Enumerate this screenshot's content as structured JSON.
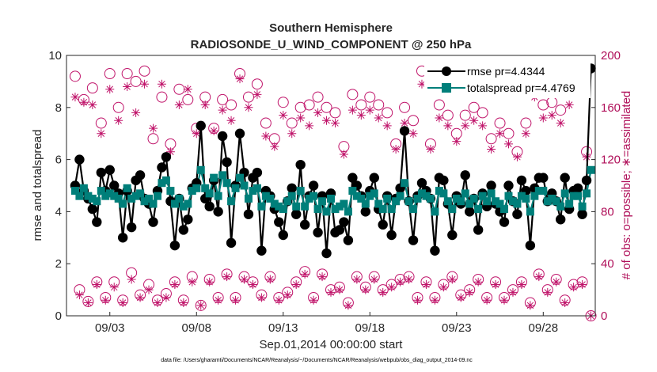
{
  "chart_data": {
    "type": "line",
    "title": "Southern Hemisphere",
    "subtitle": "RADIOSONDE_U_WIND_COMPONENT @ 250 hPa",
    "xlabel": "Sep.01,2014 00:00:00 start",
    "ylabel_left": "rmse and totalspread",
    "ylabel_right": "# of obs: o=possible; ∗=assimilated",
    "ylim_left": [
      0,
      10
    ],
    "ylim_right": [
      0,
      200
    ],
    "yticks_left": [
      0,
      2,
      4,
      6,
      8,
      10
    ],
    "yticks_right": [
      0,
      40,
      80,
      120,
      160,
      200
    ],
    "x_range_days": [
      1.0,
      30.75
    ],
    "x_step_days": 0.25,
    "x_ticks": [
      {
        "day": 3,
        "label": "09/03"
      },
      {
        "day": 8,
        "label": "09/08"
      },
      {
        "day": 13,
        "label": "09/13"
      },
      {
        "day": 18,
        "label": "09/18"
      },
      {
        "day": 23,
        "label": "09/23"
      },
      {
        "day": 28,
        "label": "09/28"
      }
    ],
    "legend_position": "top-right",
    "grid": false,
    "colors": {
      "rmse": "#000000",
      "totalspread": "#007f7a",
      "obs": "#c0146a",
      "axis": "#262626"
    },
    "series": [
      {
        "name": "rmse",
        "axis": "left",
        "legend": "rmse pr=4.4344",
        "marker": "circle",
        "values": [
          5.0,
          6.0,
          4.8,
          4.5,
          4.1,
          3.6,
          5.5,
          4.8,
          5.6,
          5.0,
          4.7,
          3.0,
          4.8,
          3.4,
          5.2,
          5.4,
          4.5,
          4.3,
          3.6,
          4.8,
          5.7,
          6.1,
          4.4,
          2.7,
          4.5,
          3.3,
          3.7,
          4.9,
          5.1,
          7.3,
          4.5,
          4.2,
          5.2,
          4.0,
          6.9,
          5.9,
          2.8,
          5.0,
          7.0,
          5.5,
          3.9,
          5.3,
          5.5,
          2.5,
          4.8,
          4.6,
          4.1,
          3.6,
          3.1,
          4.4,
          4.9,
          3.9,
          5.8,
          3.5,
          4.6,
          5.0,
          3.2,
          4.6,
          2.4,
          4.7,
          3.2,
          3.3,
          3.6,
          2.9,
          5.3,
          5.0,
          4.6,
          4.0,
          4.8,
          5.3,
          4.1,
          3.5,
          4.6,
          3.1,
          4.5,
          4.9,
          7.1,
          4.4,
          2.9,
          4.6,
          5.1,
          4.8,
          4.5,
          2.5,
          5.3,
          5.2,
          4.3,
          3.1,
          4.6,
          4.3,
          5.4,
          4.0,
          4.5,
          3.3,
          4.7,
          4.2,
          5.0,
          4.3,
          4.0,
          3.6,
          5.0,
          4.4,
          3.9,
          5.2,
          4.8,
          2.7,
          4.9,
          5.3,
          5.3,
          4.4,
          4.7,
          4.4,
          3.7,
          5.3,
          4.1,
          4.8,
          4.9,
          3.9,
          5.2,
          9.5
        ]
      },
      {
        "name": "totalspread",
        "axis": "left",
        "legend": "totalspread pr=4.4769",
        "marker": "square",
        "values": [
          4.8,
          4.6,
          4.9,
          4.6,
          4.5,
          4.4,
          4.8,
          4.6,
          4.7,
          4.6,
          4.5,
          4.3,
          4.9,
          4.5,
          4.6,
          4.7,
          4.4,
          4.5,
          4.3,
          4.6,
          5.1,
          5.2,
          4.8,
          4.3,
          4.5,
          4.2,
          4.3,
          4.8,
          4.9,
          5.6,
          4.9,
          4.7,
          5.3,
          4.6,
          5.4,
          5.1,
          4.4,
          4.9,
          5.3,
          5.0,
          4.5,
          4.8,
          4.9,
          4.2,
          4.6,
          4.5,
          4.3,
          4.2,
          4.1,
          4.4,
          4.6,
          4.2,
          4.8,
          4.2,
          4.5,
          4.6,
          4.1,
          4.4,
          4.0,
          4.5,
          4.1,
          4.2,
          4.3,
          4.0,
          4.8,
          4.6,
          4.5,
          4.3,
          4.6,
          4.7,
          4.3,
          4.1,
          4.5,
          4.1,
          4.4,
          4.6,
          5.1,
          4.4,
          4.1,
          4.5,
          4.7,
          4.6,
          4.5,
          4.0,
          4.8,
          4.7,
          4.4,
          4.1,
          4.5,
          4.4,
          4.7,
          4.3,
          4.5,
          4.1,
          4.6,
          4.4,
          4.7,
          4.4,
          4.3,
          4.1,
          4.6,
          4.4,
          4.3,
          4.6,
          4.5,
          4.0,
          4.6,
          4.8,
          4.8,
          4.4,
          4.5,
          4.4,
          4.2,
          4.7,
          4.3,
          4.6,
          4.6,
          4.2,
          4.7,
          5.6
        ]
      },
      {
        "name": "possible",
        "axis": "right",
        "marker": "open-circle",
        "values": [
          184,
          20,
          166,
          11,
          175,
          26,
          148,
          14,
          186,
          26,
          160,
          12,
          186,
          33,
          180,
          16,
          188,
          24,
          136,
          12,
          168,
          17,
          132,
          26,
          174,
          12,
          166,
          30,
          144,
          8,
          168,
          28,
          144,
          14,
          166,
          32,
          162,
          14,
          186,
          30,
          168,
          26,
          178,
          16,
          148,
          30,
          136,
          14,
          164,
          18,
          148,
          26,
          160,
          34,
          162,
          14,
          168,
          32,
          160,
          20,
          156,
          22,
          130,
          10,
          170,
          30,
          162,
          22,
          168,
          30,
          162,
          20,
          156,
          24,
          132,
          28,
          160,
          30,
          150,
          14,
          188,
          26,
          132,
          14,
          162,
          24,
          154,
          30,
          140,
          16,
          154,
          20,
          160,
          28,
          156,
          14,
          136,
          26,
          148,
          14,
          140,
          20,
          126,
          26,
          148,
          10,
          178,
          32,
          162,
          20,
          164,
          28,
          158,
          12,
          172,
          24,
          182,
          26,
          126,
          0
        ]
      },
      {
        "name": "assimilated",
        "axis": "right",
        "marker": "asterisk",
        "values": [
          168,
          16,
          164,
          10,
          162,
          24,
          140,
          12,
          174,
          22,
          150,
          10,
          176,
          28,
          156,
          14,
          178,
          20,
          144,
          10,
          178,
          14,
          126,
          24,
          162,
          10,
          174,
          26,
          140,
          8,
          162,
          26,
          142,
          12,
          158,
          30,
          150,
          12,
          182,
          28,
          160,
          24,
          170,
          14,
          138,
          28,
          130,
          12,
          154,
          16,
          140,
          24,
          152,
          32,
          146,
          12,
          156,
          30,
          150,
          18,
          148,
          20,
          124,
          8,
          158,
          28,
          154,
          20,
          158,
          28,
          152,
          18,
          146,
          22,
          128,
          26,
          148,
          28,
          140,
          12,
          178,
          24,
          128,
          12,
          152,
          22,
          146,
          28,
          134,
          14,
          146,
          18,
          150,
          26,
          146,
          12,
          128,
          24,
          140,
          12,
          132,
          18,
          122,
          24,
          140,
          8,
          168,
          30,
          152,
          18,
          154,
          26,
          148,
          10,
          162,
          22,
          172,
          24,
          122,
          0
        ]
      }
    ]
  },
  "footnote": "data file: /Users/gharamti/Documents/NCAR/Reanalysis/~/Documents/NCAR/Reanalysis/webpub/obs_diag_output_2014-09.nc"
}
